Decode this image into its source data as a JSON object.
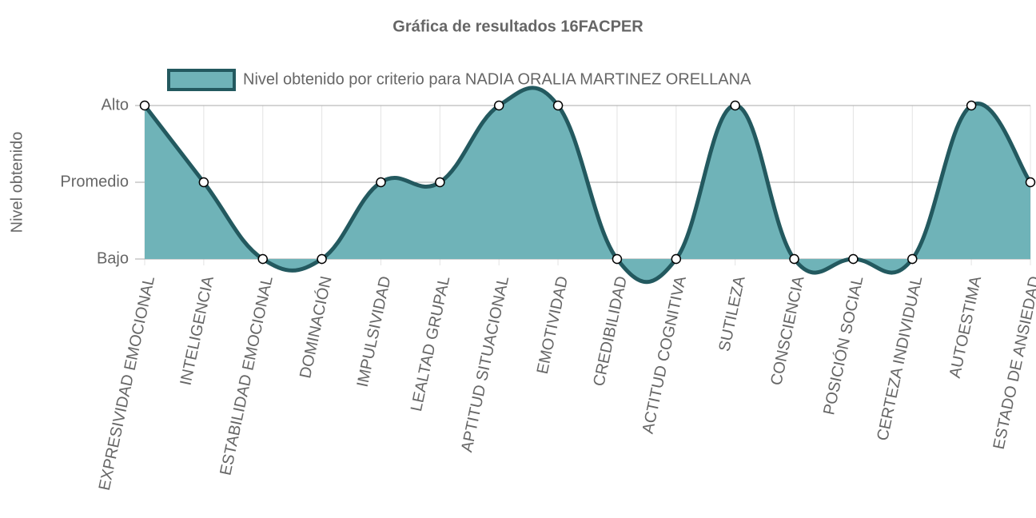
{
  "chart_data": {
    "type": "area",
    "title": "Gráfica de resultados 16FACPER",
    "y_label": "Nivel obtenido",
    "categories": [
      "EXPRESIVIDAD EMOCIONAL",
      "INTELIGENCIA",
      "ESTABILIDAD EMOCIONAL",
      "DOMINACIÓN",
      "IMPULSIVIDAD",
      "LEALTAD GRUPAL",
      "APTITUD SITUACIONAL",
      "EMOTIVIDAD",
      "CREDIBILIDAD",
      "ACTITUD COGNITIVA",
      "SUTILEZA",
      "CONSCIENCIA",
      "POSICIÓN SOCIAL",
      "CERTEZA INDIVIDUAL",
      "AUTOESTIMA",
      "ESTADO DE ANSIEDAD"
    ],
    "series": [
      {
        "name": "Nivel obtenido por criterio para NADIA ORALIA MARTINEZ ORELLANA",
        "color": "#23595f",
        "fill_color": "#6fb3b8",
        "values": [
          3,
          2,
          1,
          1,
          2,
          2,
          3,
          3,
          1,
          1,
          3,
          1,
          1,
          1,
          3,
          2
        ]
      }
    ],
    "ylim": [
      1,
      3
    ],
    "yticks": [
      {
        "value": 1,
        "label": "Bajo"
      },
      {
        "value": 2,
        "label": "Promedio"
      },
      {
        "value": 3,
        "label": "Alto"
      }
    ],
    "grid": true,
    "legend": "top"
  }
}
